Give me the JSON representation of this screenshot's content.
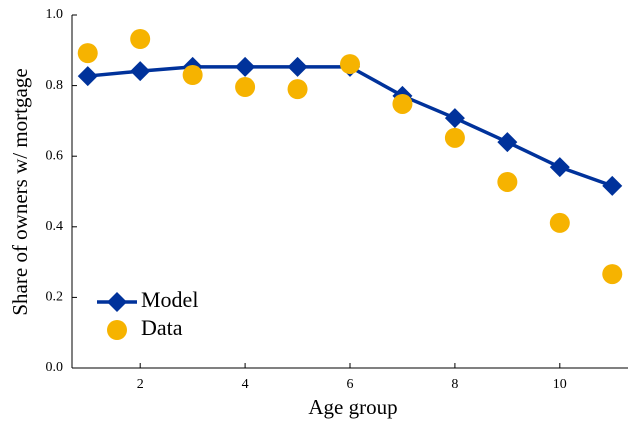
{
  "chart_data": {
    "type": "line",
    "x_label": "Age group",
    "y_label": "Share of owners w/ mortgage",
    "x": [
      1,
      2,
      3,
      4,
      5,
      6,
      7,
      8,
      9,
      10,
      11
    ],
    "series": [
      {
        "name": "Model",
        "color": "#00329b",
        "style": "line-diamond",
        "values": [
          0.827,
          0.841,
          0.853,
          0.853,
          0.853,
          0.853,
          0.771,
          0.708,
          0.64,
          0.569,
          0.516
        ]
      },
      {
        "name": "Data",
        "color": "#f6b300",
        "style": "scatter-circle",
        "values": [
          0.892,
          0.932,
          0.83,
          0.796,
          0.79,
          0.861,
          0.748,
          0.652,
          0.527,
          0.411,
          0.266
        ]
      }
    ],
    "xlim": [
      0.7,
      11.3
    ],
    "ylim": [
      0,
      1
    ],
    "xticks": [
      2,
      4,
      6,
      8,
      10
    ],
    "yticks": [
      {
        "value": 0,
        "label": "0.0"
      },
      0.2,
      0.4,
      0.6,
      0.8,
      {
        "value": 1,
        "label": "1.0"
      }
    ],
    "grid": false,
    "legend": "lower left"
  }
}
